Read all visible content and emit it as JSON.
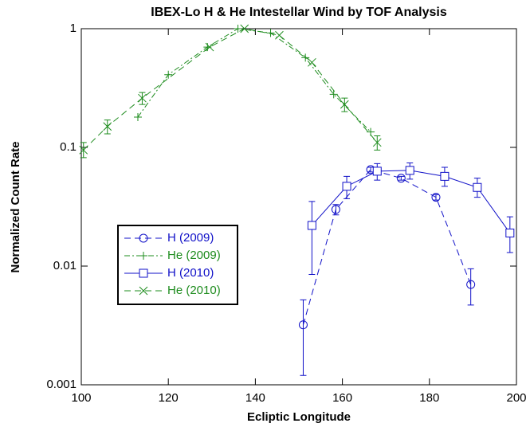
{
  "chart_data": {
    "type": "line",
    "title": "IBEX-Lo  H & He Intestellar Wind by TOF Analysis",
    "xlabel": "Ecliptic Longitude",
    "ylabel": "Normalized Count Rate",
    "xlim": [
      100,
      200
    ],
    "xticks": [
      100,
      120,
      140,
      160,
      180,
      200
    ],
    "ylim": [
      0.001,
      1
    ],
    "yticks": [
      0.001,
      0.01,
      0.1,
      1
    ],
    "yscale": "log",
    "legend": "center left",
    "series": [
      {
        "name": "H (2009)",
        "color": "#1010c8",
        "marker": "circle",
        "line_style": "dashed",
        "x": [
          151,
          158.5,
          166.5,
          173.5,
          181.5,
          189.5
        ],
        "values": [
          0.0032,
          0.03,
          0.065,
          0.055,
          0.038,
          0.007
        ],
        "lower": [
          0.0012,
          0.027,
          0.062,
          0.053,
          0.036,
          0.0047
        ],
        "upper": [
          0.0052,
          0.033,
          0.068,
          0.057,
          0.04,
          0.0095
        ]
      },
      {
        "name": "He (2009)",
        "color": "#1e8c1e",
        "marker": "plus",
        "line_style": "dashdot",
        "x": [
          113,
          120,
          129,
          136,
          143.5,
          151.5,
          158,
          166.5
        ],
        "values": [
          0.18,
          0.41,
          0.7,
          1.0,
          0.92,
          0.57,
          0.28,
          0.135
        ],
        "lower": [
          null,
          null,
          null,
          null,
          null,
          null,
          null,
          null
        ],
        "upper": [
          null,
          null,
          null,
          null,
          null,
          null,
          null,
          null
        ]
      },
      {
        "name": "H (2010)",
        "color": "#1010c8",
        "marker": "square",
        "line_style": "solid",
        "x": [
          153,
          161,
          168,
          175.5,
          183.5,
          191,
          198.5
        ],
        "values": [
          0.022,
          0.047,
          0.063,
          0.064,
          0.057,
          0.046,
          0.019
        ],
        "lower": [
          0.0085,
          0.037,
          0.053,
          0.054,
          0.047,
          0.038,
          0.013
        ],
        "upper": [
          0.035,
          0.057,
          0.073,
          0.074,
          0.068,
          0.055,
          0.026
        ]
      },
      {
        "name": "He (2010)",
        "color": "#1e8c1e",
        "marker": "x",
        "line_style": "dashed",
        "x": [
          100.5,
          106,
          114,
          129.5,
          137.5,
          145.5,
          153,
          160.5,
          168
        ],
        "values": [
          0.095,
          0.15,
          0.26,
          0.7,
          1.0,
          0.88,
          0.52,
          0.23,
          0.11
        ],
        "lower": [
          0.082,
          0.13,
          0.23,
          null,
          null,
          null,
          null,
          0.2,
          0.095
        ],
        "upper": [
          0.11,
          0.17,
          0.29,
          null,
          null,
          null,
          null,
          0.26,
          0.125
        ]
      }
    ]
  }
}
